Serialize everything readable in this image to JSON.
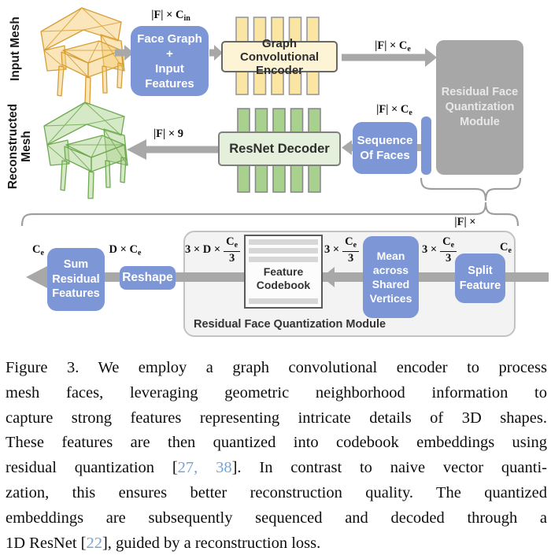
{
  "diagram": {
    "input_mesh_label": "Input Mesh",
    "reconstructed_mesh_label": "Reconstructed Mesh",
    "boxes": {
      "face_graph": "Face Graph\n+\nInput\nFeatures",
      "encoder": "Graph Convolutional\nEncoder",
      "decoder": "ResNet Decoder",
      "sequence": "Sequence\nOf Faces",
      "rfq": "Residual Face\nQuantization\nModule",
      "sum_residual": "Sum\nResidual\nFeatures",
      "reshape": "Reshape",
      "codebook": "Feature\nCodebook",
      "mean_shared": "Mean\nacross\nShared\nVertices",
      "split_feature": "Split\nFeature",
      "rfq_caption": "Residual Face Quantization Module"
    },
    "labels": {
      "f_cin": {
        "base": "|F| × C",
        "sub": "in"
      },
      "f_ce": {
        "base": "|F| × C",
        "sub": "e"
      },
      "f_9": {
        "base": "|F| × 9",
        "sub": ""
      },
      "f_x": {
        "base": "|F| ×",
        "sub": ""
      },
      "ce": {
        "base": "C",
        "sub": "e"
      },
      "d_ce": {
        "base": "D × C",
        "sub": "e"
      },
      "frac_3dce": {
        "prefix": "3 × D ×",
        "num_base": "C",
        "num_sub": "e",
        "den": "3"
      },
      "frac_3ce": {
        "prefix": "3 ×",
        "num_base": "C",
        "num_sub": "e",
        "den": "3"
      }
    },
    "colors": {
      "box_blue": "#7C96D6",
      "bar_yellow": "#FBE5A2",
      "encoder_fill": "#FDF4D5",
      "bar_green": "#A9D18E",
      "decoder_fill": "#E4F0DB",
      "module_gray": "#A7A7A7",
      "panel_gray": "#F3F3F3",
      "arrow_gray": "#A8A8A8",
      "citation_blue": "#76A3D8"
    }
  },
  "caption": {
    "lines": [
      [
        {
          "t": "Figure 3.  We employ a graph convolutional encoder to process"
        }
      ],
      [
        {
          "t": "mesh faces, leveraging geometric neighborhood information to"
        }
      ],
      [
        {
          "t": "capture strong features representing intricate details of 3D shapes."
        }
      ],
      [
        {
          "t": "These features are then quantized into codebook embeddings using"
        }
      ],
      [
        {
          "t": "residual quantization ["
        },
        {
          "t": "27, 38",
          "cite": true
        },
        {
          "t": "].  In contrast to naive vector quanti-"
        }
      ],
      [
        {
          "t": "zation, this ensures better reconstruction quality.  The quantized"
        }
      ],
      [
        {
          "t": "embeddings are subsequently sequenced and decoded through a"
        }
      ],
      [
        {
          "t": "1D ResNet ["
        },
        {
          "t": "22",
          "cite": true
        },
        {
          "t": "], guided by a reconstruction loss."
        }
      ]
    ]
  }
}
